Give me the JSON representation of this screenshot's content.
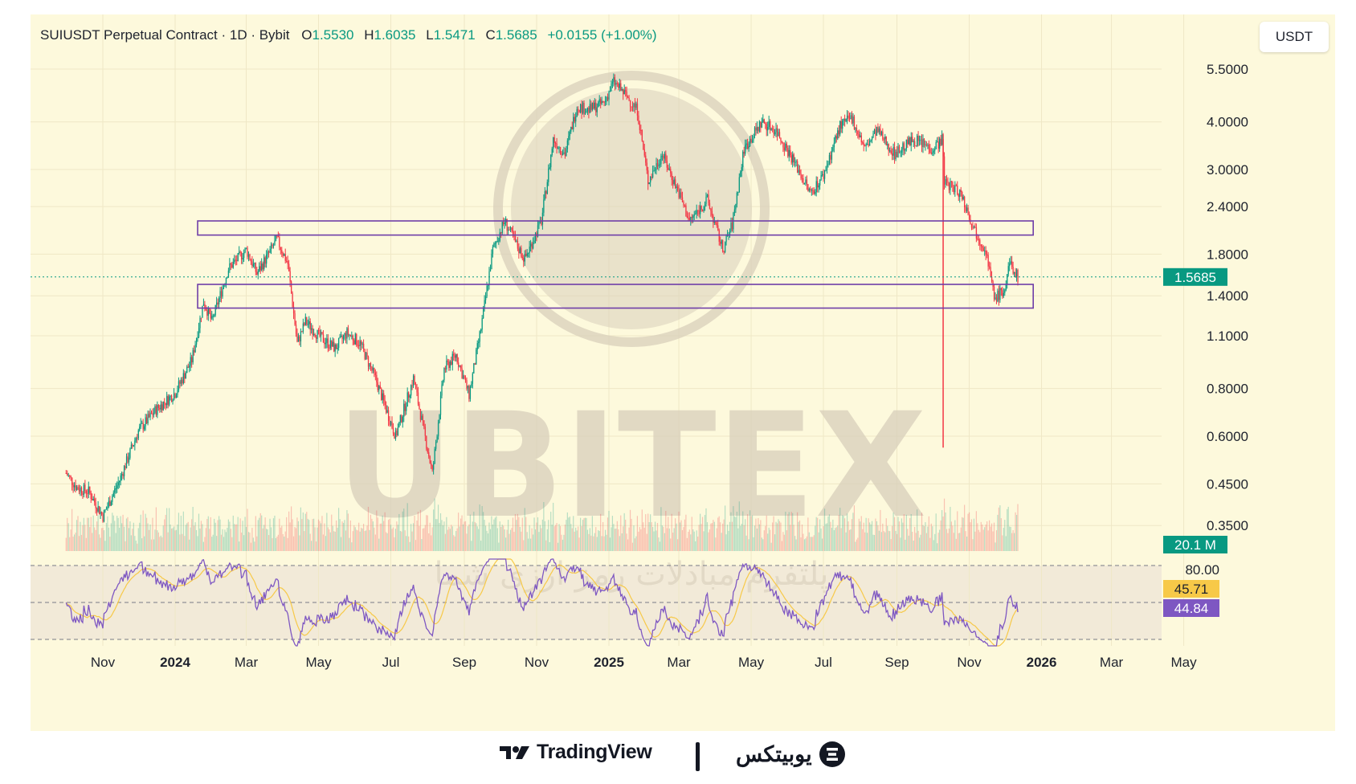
{
  "header": {
    "title": "SUIUSDT Perpetual Contract · 1D · Bybit",
    "o_label": "O",
    "o_value": "1.5530",
    "h_label": "H",
    "h_value": "1.6035",
    "l_label": "L",
    "l_value": "1.5471",
    "c_label": "C",
    "c_value": "1.5685",
    "change": "+0.0155 (+1.00%)"
  },
  "currency_button": "USDT",
  "watermark": {
    "big": "UBITEX",
    "persian": "پلتفرم مبادلات رمز ارزی شما"
  },
  "footer": {
    "tradingview": "TradingView",
    "ubitex": "یوبیتکس"
  },
  "colors": {
    "up": "#089981",
    "down": "#f23645",
    "box": "#6f3ea8",
    "rsi": "#7e57c2",
    "rsi_ma": "#f7c948",
    "bg": "#fdf9dc"
  },
  "chart_data": {
    "type": "candlestick",
    "symbol": "SUIUSDT",
    "timeframe": "1D",
    "exchange": "Bybit",
    "y_scale": "log",
    "y_ticks": [
      "5.5000",
      "4.0000",
      "3.0000",
      "2.4000",
      "1.8000",
      "1.4000",
      "1.1000",
      "0.8000",
      "0.6000",
      "0.4500",
      "0.3500"
    ],
    "x_ticks": [
      "Nov",
      "2024",
      "Mar",
      "May",
      "Jul",
      "Sep",
      "Nov",
      "2025",
      "Mar",
      "May",
      "Jul",
      "Sep",
      "Nov",
      "2026",
      "Mar",
      "May"
    ],
    "last_price": "1.5685",
    "volume_label": "20.1 M",
    "zones": [
      {
        "name": "resistance",
        "low": 2.02,
        "high": 2.2
      },
      {
        "name": "support",
        "low": 1.3,
        "high": 1.5
      }
    ],
    "price_path": [
      [
        "2023-10-01",
        0.48
      ],
      [
        "2023-10-10",
        0.44
      ],
      [
        "2023-10-20",
        0.43
      ],
      [
        "2023-11-01",
        0.37
      ],
      [
        "2023-11-15",
        0.46
      ],
      [
        "2023-12-01",
        0.62
      ],
      [
        "2023-12-15",
        0.7
      ],
      [
        "2024-01-01",
        0.78
      ],
      [
        "2024-01-15",
        0.95
      ],
      [
        "2024-01-25",
        1.35
      ],
      [
        "2024-02-01",
        1.2
      ],
      [
        "2024-02-15",
        1.65
      ],
      [
        "2024-03-01",
        1.85
      ],
      [
        "2024-03-10",
        1.6
      ],
      [
        "2024-03-27",
        1.97
      ],
      [
        "2024-04-05",
        1.7
      ],
      [
        "2024-04-13",
        1.05
      ],
      [
        "2024-04-20",
        1.2
      ],
      [
        "2024-05-01",
        1.1
      ],
      [
        "2024-05-15",
        1.02
      ],
      [
        "2024-05-25",
        1.12
      ],
      [
        "2024-06-05",
        1.05
      ],
      [
        "2024-06-18",
        0.85
      ],
      [
        "2024-07-05",
        0.6
      ],
      [
        "2024-07-20",
        0.85
      ],
      [
        "2024-08-05",
        0.48
      ],
      [
        "2024-08-15",
        0.9
      ],
      [
        "2024-08-25",
        0.98
      ],
      [
        "2024-09-05",
        0.77
      ],
      [
        "2024-09-15",
        1.15
      ],
      [
        "2024-09-25",
        1.85
      ],
      [
        "2024-10-05",
        2.2
      ],
      [
        "2024-10-15",
        1.9
      ],
      [
        "2024-10-22",
        1.75
      ],
      [
        "2024-11-05",
        2.2
      ],
      [
        "2024-11-15",
        3.6
      ],
      [
        "2024-11-25",
        3.3
      ],
      [
        "2024-12-05",
        4.4
      ],
      [
        "2024-12-15",
        4.3
      ],
      [
        "2024-12-28",
        4.5
      ],
      [
        "2025-01-05",
        5.1
      ],
      [
        "2025-01-15",
        4.7
      ],
      [
        "2025-01-25",
        4.3
      ],
      [
        "2025-02-03",
        2.8
      ],
      [
        "2025-02-15",
        3.3
      ],
      [
        "2025-03-01",
        2.6
      ],
      [
        "2025-03-10",
        2.2
      ],
      [
        "2025-03-25",
        2.5
      ],
      [
        "2025-04-07",
        1.85
      ],
      [
        "2025-04-15",
        2.15
      ],
      [
        "2025-04-25",
        3.4
      ],
      [
        "2025-05-10",
        4.0
      ],
      [
        "2025-05-22",
        3.8
      ],
      [
        "2025-06-05",
        3.2
      ],
      [
        "2025-06-20",
        2.6
      ],
      [
        "2025-07-01",
        2.9
      ],
      [
        "2025-07-15",
        3.9
      ],
      [
        "2025-07-25",
        4.1
      ],
      [
        "2025-08-05",
        3.4
      ],
      [
        "2025-08-15",
        3.8
      ],
      [
        "2025-08-30",
        3.3
      ],
      [
        "2025-09-15",
        3.6
      ],
      [
        "2025-10-01",
        3.4
      ],
      [
        "2025-10-09",
        3.6
      ],
      [
        "2025-10-11",
        2.8
      ],
      [
        "2025-10-25",
        2.6
      ],
      [
        "2025-11-05",
        2.1
      ],
      [
        "2025-11-15",
        1.85
      ],
      [
        "2025-11-22",
        1.38
      ],
      [
        "2025-12-01",
        1.45
      ],
      [
        "2025-12-05",
        1.7
      ],
      [
        "2025-12-12",
        1.5685
      ]
    ],
    "rsi": {
      "overbought": "80.00",
      "ma_value": "45.71",
      "rsi_value": "44.84"
    }
  }
}
